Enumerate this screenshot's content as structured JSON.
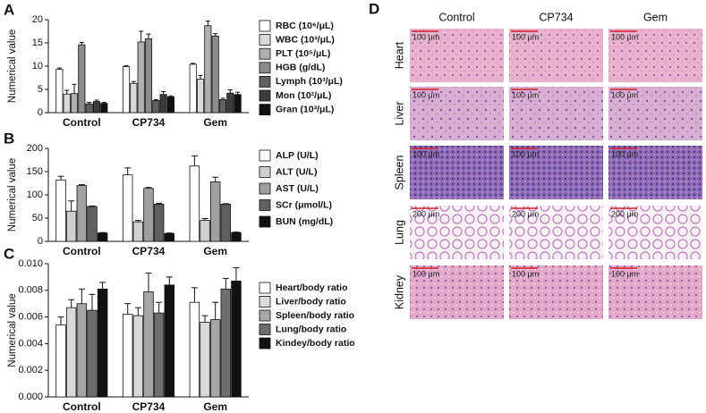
{
  "chart_data": [
    {
      "type": "bar",
      "panel": "A",
      "y_label": "Numerical value",
      "categories": [
        "Control",
        "CP734",
        "Gem"
      ],
      "ylim": [
        0,
        20
      ],
      "yticks": [
        0,
        5,
        10,
        15,
        20
      ],
      "series": [
        {
          "name": "RBC (10⁶/μL)",
          "color": "#ffffff",
          "values": [
            9.3,
            9.9,
            10.4
          ],
          "errors": [
            0.3,
            0.2,
            0.2
          ]
        },
        {
          "name": "WBC (10³/μL)",
          "color": "#d9d9d9",
          "values": [
            4.0,
            6.3,
            7.2
          ],
          "errors": [
            0.8,
            0.4,
            0.8
          ]
        },
        {
          "name": "PLT (10⁵/μL)",
          "color": "#b0b0b0",
          "values": [
            4.1,
            15.2,
            18.7
          ],
          "errors": [
            2.0,
            2.3,
            1.0
          ]
        },
        {
          "name": "HGB (g/dL)",
          "color": "#8c8c8c",
          "values": [
            14.6,
            15.9,
            16.5
          ],
          "errors": [
            0.5,
            1.0,
            0.5
          ]
        },
        {
          "name": "Lymph (10³/μL)",
          "color": "#606060",
          "values": [
            1.9,
            2.6,
            2.8
          ],
          "errors": [
            0.3,
            0.2,
            0.3
          ]
        },
        {
          "name": "Mon (10²/μL)",
          "color": "#3c3c3c",
          "values": [
            2.4,
            3.9,
            4.2
          ],
          "errors": [
            0.3,
            0.6,
            0.7
          ]
        },
        {
          "name": "Gran (10³/μL)",
          "color": "#111111",
          "values": [
            2.0,
            3.4,
            3.9
          ],
          "errors": [
            0.2,
            0.2,
            0.5
          ]
        }
      ]
    },
    {
      "type": "bar",
      "panel": "B",
      "y_label": "Numerical value",
      "categories": [
        "Control",
        "CP734",
        "Gem"
      ],
      "ylim": [
        0,
        200
      ],
      "yticks": [
        0,
        50,
        100,
        150,
        200
      ],
      "series": [
        {
          "name": "ALP (U/L)",
          "color": "#ffffff",
          "values": [
            132,
            143,
            162
          ],
          "errors": [
            8,
            15,
            22
          ]
        },
        {
          "name": "ALT (U/L)",
          "color": "#d0d0d0",
          "values": [
            65,
            42,
            45
          ],
          "errors": [
            22,
            3,
            4
          ]
        },
        {
          "name": "AST (U/L)",
          "color": "#a0a0a0",
          "values": [
            120,
            114,
            128
          ],
          "errors": [
            2,
            2,
            10
          ]
        },
        {
          "name": "SCr (μmol/L)",
          "color": "#606060",
          "values": [
            75,
            80,
            80
          ],
          "errors": [
            1,
            2,
            1
          ]
        },
        {
          "name": "BUN (mg/dL)",
          "color": "#111111",
          "values": [
            18,
            17,
            19
          ],
          "errors": [
            1,
            1,
            1
          ]
        }
      ]
    },
    {
      "type": "bar",
      "panel": "C",
      "y_label": "Numerical value",
      "categories": [
        "Control",
        "CP734",
        "Gem"
      ],
      "ylim": [
        0,
        0.01
      ],
      "yticks": [
        {
          "value": 0,
          "label": "0.000"
        },
        {
          "value": 0.002,
          "label": "0.002"
        },
        {
          "value": 0.004,
          "label": "0.004"
        },
        {
          "value": 0.006,
          "label": "0.006"
        },
        {
          "value": 0.008,
          "label": "0.008"
        },
        {
          "value": 0.01,
          "label": "0.010"
        }
      ],
      "series": [
        {
          "name": "Heart/body ratio",
          "color": "#ffffff",
          "values": [
            0.0054,
            0.0062,
            0.0071
          ],
          "errors": [
            0.0006,
            0.0008,
            0.0011
          ]
        },
        {
          "name": "Liver/body ratio",
          "color": "#d9d9d9",
          "values": [
            0.0067,
            0.0061,
            0.0056
          ],
          "errors": [
            0.0006,
            0.0006,
            0.0005
          ]
        },
        {
          "name": "Spleen/body ratio",
          "color": "#a6a6a6",
          "values": [
            0.007,
            0.0079,
            0.0058
          ],
          "errors": [
            0.0011,
            0.0014,
            0.0013
          ]
        },
        {
          "name": "Lung/body ratio",
          "color": "#6e6e6e",
          "values": [
            0.0065,
            0.0063,
            0.0081
          ],
          "errors": [
            0.0012,
            0.0008,
            0.0008
          ]
        },
        {
          "name": "Kindey/body ratio",
          "color": "#111111",
          "values": [
            0.0081,
            0.0084,
            0.0087
          ],
          "errors": [
            0.0005,
            0.0006,
            0.001
          ]
        }
      ]
    }
  ],
  "panel_d": {
    "panel": "D",
    "columns": [
      "Control",
      "CP734",
      "Gem"
    ],
    "rows": [
      "Heart",
      "Liver",
      "Spleen",
      "Lung",
      "Kidney"
    ],
    "scale_bars": [
      "100 μm",
      "100 μm",
      "100 μm",
      "200 μm",
      "100 μm"
    ]
  }
}
